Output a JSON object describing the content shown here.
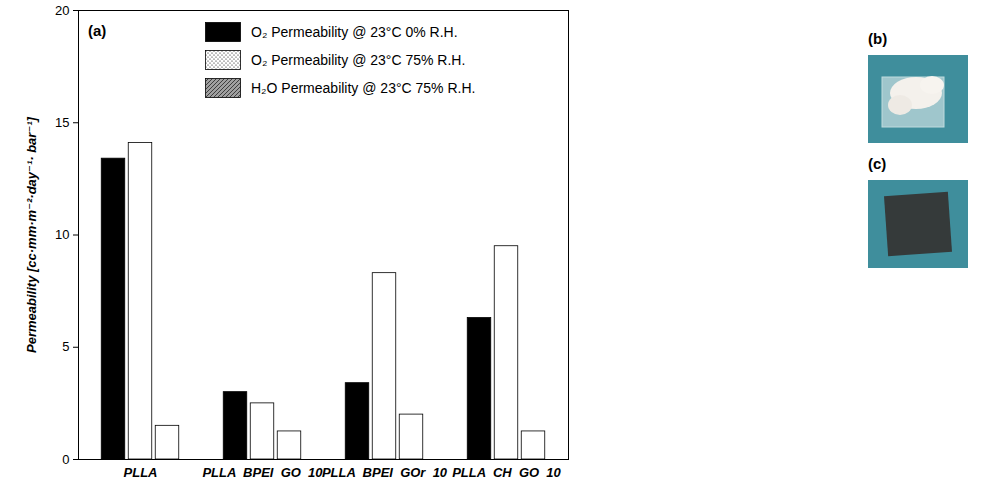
{
  "chart_data": {
    "type": "bar",
    "panel_label": "(a)",
    "y_label": "Permeability [cc·mm·m⁻²·day⁻¹· bar⁻¹]",
    "categories": [
      "PLLA",
      "PLLA  BPEI  GO  10",
      "PLLA  BPEI  GOr  10",
      "PLLA  CH  GO  10"
    ],
    "series": [
      {
        "name": "O₂ Permeability  @ 23°C 0% R.H.",
        "color": "#000000",
        "values": [
          13.4,
          3.0,
          3.4,
          6.3
        ]
      },
      {
        "name": "O₂ Permeability  @ 23°C 75% R.H.",
        "color": "#ffffff",
        "values": [
          14.1,
          2.5,
          8.3,
          9.5
        ]
      },
      {
        "name": "H₂O Permeability  @ 23°C 75% R.H.",
        "color": "#a0a0a0",
        "values": [
          1.5,
          1.25,
          2.0,
          1.25
        ]
      }
    ],
    "ylim": [
      0,
      20
    ],
    "yticks": [
      0,
      5,
      10,
      15,
      20
    ],
    "legend": "top",
    "grid": false
  },
  "images": [
    {
      "label": "(b)"
    },
    {
      "label": "(c)"
    }
  ]
}
